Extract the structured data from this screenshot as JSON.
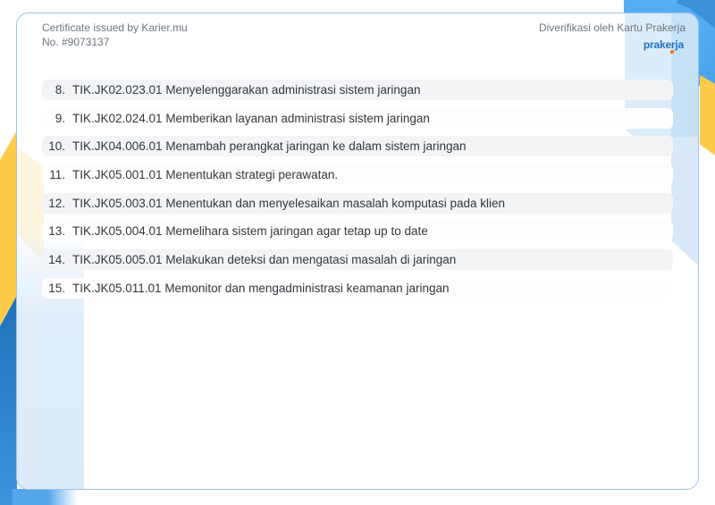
{
  "header": {
    "issuer": "Certificate issued by Karier.mu",
    "certificate_number": "No. #9073137",
    "verification": "Diverifikasi oleh Kartu Prakerja",
    "logo": "prakerja"
  },
  "competency_list": {
    "items": [
      {
        "number": "8.",
        "text": "TIK.JK02.023.01 Menyelenggarakan administrasi sistem jaringan"
      },
      {
        "number": "9.",
        "text": "TIK.JK02.024.01 Memberikan layanan administrasi sistem jaringan"
      },
      {
        "number": "10.",
        "text": "TIK.JK04.006.01 Menambah perangkat jaringan ke dalam sistem jaringan"
      },
      {
        "number": "11.",
        "text": "TIK.JK05.001.01 Menentukan strategi perawatan."
      },
      {
        "number": "12.",
        "text": "TIK.JK05.003.01 Menentukan dan menyelesaikan masalah komputasi pada klien"
      },
      {
        "number": "13.",
        "text": "TIK.JK05.004.01 Memelihara sistem jaringan agar tetap up to date"
      },
      {
        "number": "14.",
        "text": "TIK.JK05.005.01 Melakukan deteksi dan mengatasi masalah di jaringan"
      },
      {
        "number": "15.",
        "text": "TIK.JK05.011.01 Memonitor dan mengadministrasi keamanan jaringan"
      }
    ]
  },
  "colors": {
    "logo_blue": "#1c74c0",
    "logo_orange": "#f26f21",
    "accent_yellow": "#fdca4a",
    "accent_sky": "#55aef3",
    "accent_sky_dark": "#3d92da",
    "accent_dark_blue": "#1f6fb8",
    "accent_dark_blue2": "#3c94dd",
    "row_alt_bg": "#f3f4f6",
    "panel_blue": "#dcebf9"
  }
}
